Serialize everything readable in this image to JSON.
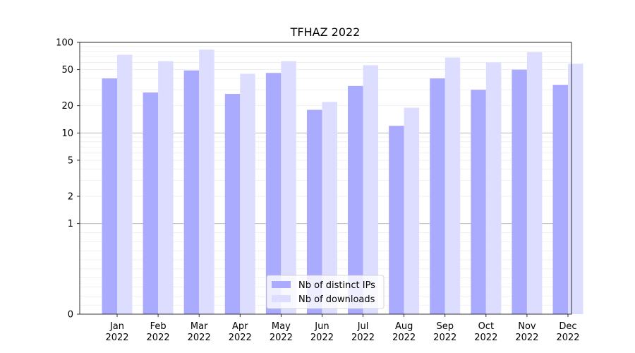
{
  "chart_data": {
    "type": "bar",
    "title": "TFHAZ 2022",
    "xlabel": "",
    "ylabel": "",
    "yscale": "symlog",
    "ylim": [
      0,
      100
    ],
    "yticks": [
      {
        "value": 0,
        "label": "0"
      },
      {
        "value": 1,
        "label": "1"
      },
      {
        "value": 2,
        "label": "2"
      },
      {
        "value": 5,
        "label": "5"
      },
      {
        "value": 10,
        "label": "10"
      },
      {
        "value": 20,
        "label": "20"
      },
      {
        "value": 50,
        "label": "50"
      },
      {
        "value": 100,
        "label": "100"
      }
    ],
    "categories": [
      {
        "month": "Jan",
        "year": "2022"
      },
      {
        "month": "Feb",
        "year": "2022"
      },
      {
        "month": "Mar",
        "year": "2022"
      },
      {
        "month": "Apr",
        "year": "2022"
      },
      {
        "month": "May",
        "year": "2022"
      },
      {
        "month": "Jun",
        "year": "2022"
      },
      {
        "month": "Jul",
        "year": "2022"
      },
      {
        "month": "Aug",
        "year": "2022"
      },
      {
        "month": "Sep",
        "year": "2022"
      },
      {
        "month": "Oct",
        "year": "2022"
      },
      {
        "month": "Nov",
        "year": "2022"
      },
      {
        "month": "Dec",
        "year": "2022"
      }
    ],
    "series": [
      {
        "name": "Nb of distinct IPs",
        "color": "#aaaaff",
        "values": [
          40,
          28,
          49,
          27,
          46,
          18,
          33,
          12,
          40,
          30,
          50,
          34
        ]
      },
      {
        "name": "Nb of downloads",
        "color": "#ddddff",
        "values": [
          73,
          62,
          83,
          45,
          62,
          22,
          56,
          19,
          68,
          60,
          78,
          58
        ]
      }
    ],
    "grid": true,
    "legend_position": "bottom-center"
  }
}
